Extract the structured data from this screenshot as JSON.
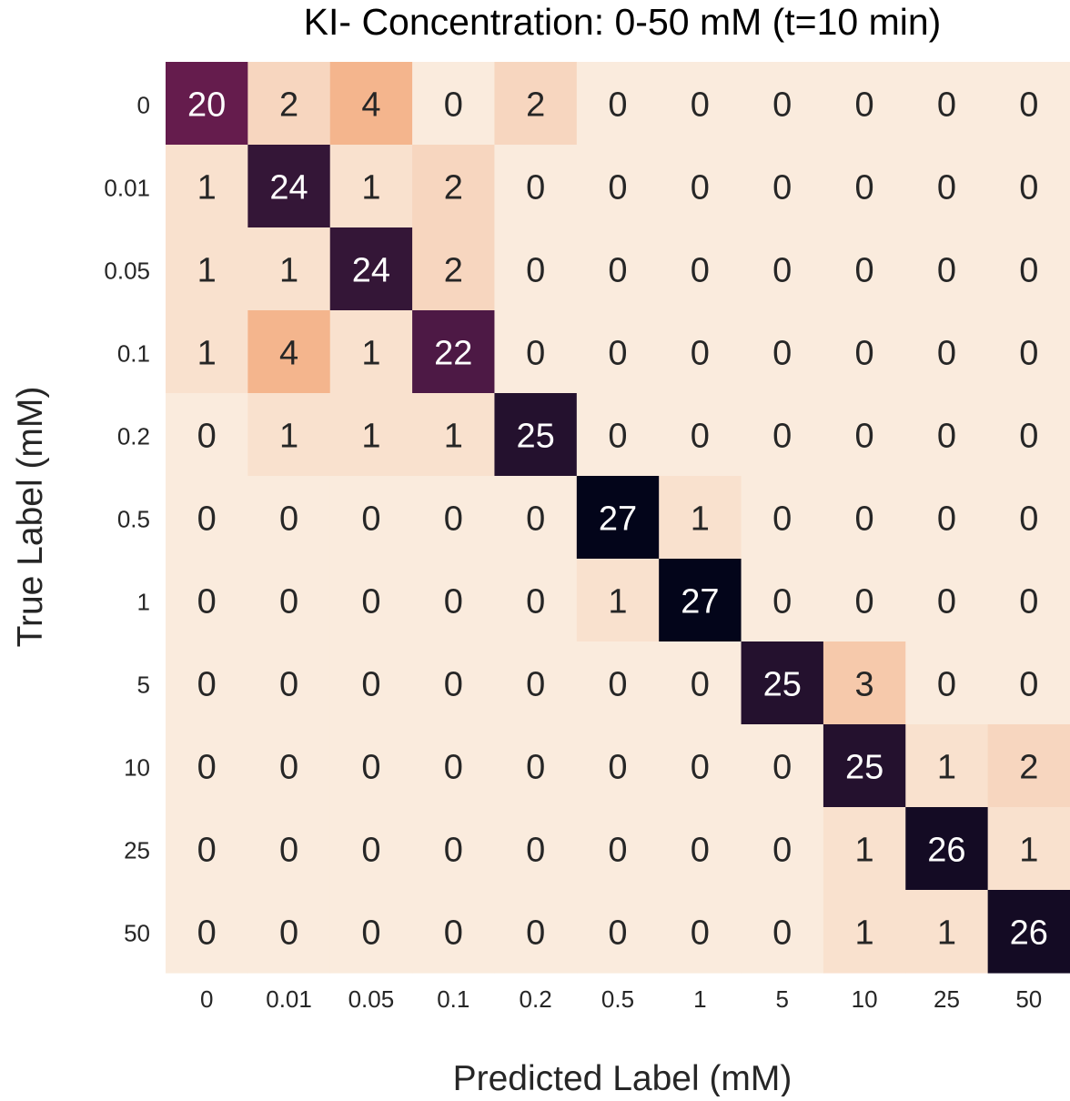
{
  "chart_data": {
    "type": "heatmap",
    "title": "KI- Concentration: 0-50 mM (t=10 min)",
    "xlabel": "Predicted Label (mM)",
    "ylabel": "True Label (mM)",
    "x_categories": [
      "0",
      "0.01",
      "0.05",
      "0.1",
      "0.2",
      "0.5",
      "1",
      "5",
      "10",
      "25",
      "50"
    ],
    "y_categories": [
      "0",
      "0.01",
      "0.05",
      "0.1",
      "0.2",
      "0.5",
      "1",
      "5",
      "10",
      "25",
      "50"
    ],
    "values": [
      [
        20,
        2,
        4,
        0,
        2,
        0,
        0,
        0,
        0,
        0,
        0
      ],
      [
        1,
        24,
        1,
        2,
        0,
        0,
        0,
        0,
        0,
        0,
        0
      ],
      [
        1,
        1,
        24,
        2,
        0,
        0,
        0,
        0,
        0,
        0,
        0
      ],
      [
        1,
        4,
        1,
        22,
        0,
        0,
        0,
        0,
        0,
        0,
        0
      ],
      [
        0,
        1,
        1,
        1,
        25,
        0,
        0,
        0,
        0,
        0,
        0
      ],
      [
        0,
        0,
        0,
        0,
        0,
        27,
        1,
        0,
        0,
        0,
        0
      ],
      [
        0,
        0,
        0,
        0,
        0,
        1,
        27,
        0,
        0,
        0,
        0
      ],
      [
        0,
        0,
        0,
        0,
        0,
        0,
        0,
        25,
        3,
        0,
        0
      ],
      [
        0,
        0,
        0,
        0,
        0,
        0,
        0,
        0,
        25,
        1,
        2
      ],
      [
        0,
        0,
        0,
        0,
        0,
        0,
        0,
        0,
        1,
        26,
        1
      ],
      [
        0,
        0,
        0,
        0,
        0,
        0,
        0,
        0,
        1,
        1,
        26
      ]
    ],
    "color_range": [
      0,
      27
    ],
    "colormap": "rocket_r",
    "colorbar": false,
    "grid": false
  }
}
